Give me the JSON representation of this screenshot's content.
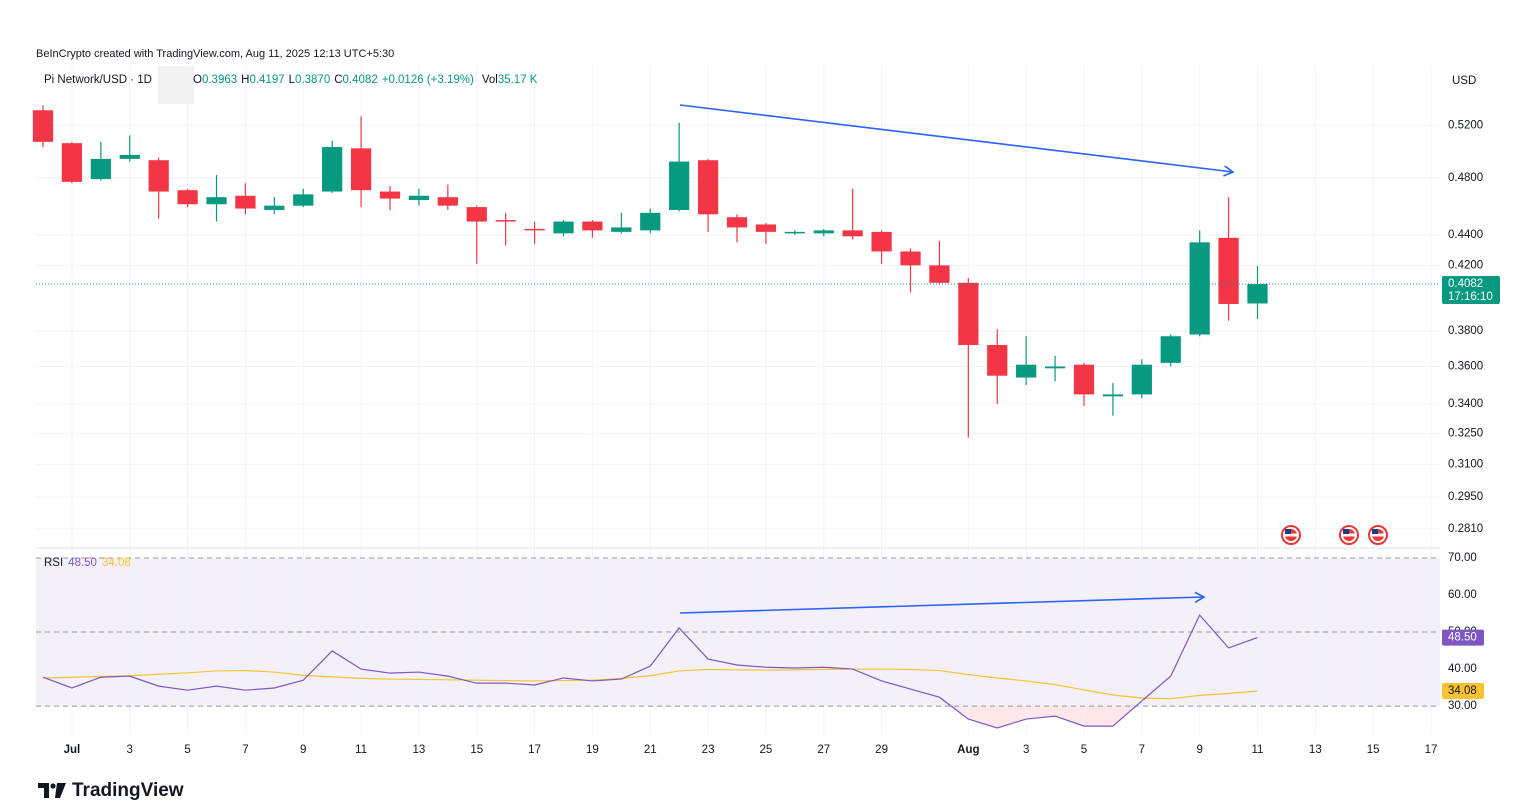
{
  "chart_data": {
    "type": "candlestick",
    "credit": "BeInCrypto created with TradingView.com, Aug 11, 2025 12:13 UTC+5:30",
    "title": "Pi Network/USD · 1D",
    "ohlc_legend": [
      {
        "label": "O",
        "value": "0.3963"
      },
      {
        "label": "H",
        "value": "0.4197"
      },
      {
        "label": "L",
        "value": "0.3870"
      },
      {
        "label": "C",
        "value": "0.4082"
      }
    ],
    "change": "+0.0126 (+3.19%)",
    "volume": {
      "label": "Vol",
      "value": "35.17 K"
    },
    "currency": "USD",
    "countdown": "17:16:10",
    "up_color": "#089981",
    "down_color": "#f23645",
    "log_scale": true,
    "grid": true,
    "x": [
      "2025-06-30",
      "2025-07-01",
      "2025-07-02",
      "2025-07-03",
      "2025-07-04",
      "2025-07-05",
      "2025-07-06",
      "2025-07-07",
      "2025-07-08",
      "2025-07-09",
      "2025-07-10",
      "2025-07-11",
      "2025-07-12",
      "2025-07-13",
      "2025-07-14",
      "2025-07-15",
      "2025-07-16",
      "2025-07-17",
      "2025-07-18",
      "2025-07-19",
      "2025-07-20",
      "2025-07-21",
      "2025-07-22",
      "2025-07-23",
      "2025-07-24",
      "2025-07-25",
      "2025-07-26",
      "2025-07-27",
      "2025-07-28",
      "2025-07-29",
      "2025-07-30",
      "2025-07-31",
      "2025-08-01",
      "2025-08-02",
      "2025-08-03",
      "2025-08-04",
      "2025-08-05",
      "2025-08-06",
      "2025-08-07",
      "2025-08-08",
      "2025-08-09",
      "2025-08-10",
      "2025-08-11"
    ],
    "open": [
      0.532,
      0.506,
      0.479,
      0.494,
      0.493,
      0.471,
      0.461,
      0.467,
      0.457,
      0.46,
      0.47,
      0.502,
      0.47,
      0.464,
      0.466,
      0.459,
      0.45,
      0.444,
      0.441,
      0.449,
      0.442,
      0.443,
      0.457,
      0.493,
      0.452,
      0.447,
      0.441,
      0.441,
      0.443,
      0.442,
      0.429,
      0.42,
      0.409,
      0.372,
      0.354,
      0.359,
      0.361,
      0.344,
      0.345,
      0.362,
      0.378,
      0.438,
      0.3963
    ],
    "high": [
      0.536,
      0.507,
      0.507,
      0.512,
      0.495,
      0.472,
      0.482,
      0.476,
      0.466,
      0.472,
      0.508,
      0.527,
      0.474,
      0.472,
      0.475,
      0.46,
      0.455,
      0.449,
      0.45,
      0.45,
      0.455,
      0.458,
      0.522,
      0.494,
      0.454,
      0.448,
      0.443,
      0.444,
      0.472,
      0.443,
      0.431,
      0.436,
      0.412,
      0.381,
      0.377,
      0.366,
      0.362,
      0.351,
      0.364,
      0.378,
      0.443,
      0.466,
      0.4197
    ],
    "low": [
      0.503,
      0.476,
      0.478,
      0.492,
      0.451,
      0.459,
      0.449,
      0.454,
      0.454,
      0.459,
      0.469,
      0.459,
      0.457,
      0.46,
      0.457,
      0.421,
      0.433,
      0.434,
      0.439,
      0.438,
      0.441,
      0.441,
      0.456,
      0.442,
      0.435,
      0.434,
      0.44,
      0.439,
      0.437,
      0.421,
      0.403,
      0.408,
      0.323,
      0.34,
      0.35,
      0.352,
      0.339,
      0.334,
      0.343,
      0.36,
      0.377,
      0.386,
      0.387
    ],
    "close": [
      0.507,
      0.477,
      0.494,
      0.497,
      0.47,
      0.461,
      0.466,
      0.458,
      0.46,
      0.468,
      0.503,
      0.471,
      0.465,
      0.467,
      0.46,
      0.449,
      0.449,
      0.443,
      0.449,
      0.443,
      0.445,
      0.455,
      0.492,
      0.454,
      0.445,
      0.442,
      0.442,
      0.443,
      0.439,
      0.429,
      0.42,
      0.409,
      0.372,
      0.355,
      0.361,
      0.36,
      0.345,
      0.345,
      0.361,
      0.377,
      0.435,
      0.396,
      0.4082
    ],
    "ylim": [
      0.273,
      0.57
    ],
    "yticks": [
      {
        "value": 0.281,
        "label": "0.2810"
      },
      {
        "value": 0.295,
        "label": "0.2950"
      },
      {
        "value": 0.31,
        "label": "0.3100"
      },
      {
        "value": 0.325,
        "label": "0.3250"
      },
      {
        "value": 0.34,
        "label": "0.3400"
      },
      {
        "value": 0.36,
        "label": "0.3600"
      },
      {
        "value": 0.38,
        "label": "0.3800"
      },
      {
        "value": 0.42,
        "label": "0.4200"
      },
      {
        "value": 0.44,
        "label": "0.4400"
      },
      {
        "value": 0.48,
        "label": "0.4800"
      },
      {
        "value": 0.52,
        "label": "0.5200"
      }
    ],
    "xlim": [
      "2025-06-30",
      "2025-08-17"
    ],
    "xticks": [
      {
        "value": "2025-07-01",
        "label": "Jul"
      },
      {
        "value": "2025-07-03",
        "label": "3"
      },
      {
        "value": "2025-07-05",
        "label": "5"
      },
      {
        "value": "2025-07-07",
        "label": "7"
      },
      {
        "value": "2025-07-09",
        "label": "9"
      },
      {
        "value": "2025-07-11",
        "label": "11"
      },
      {
        "value": "2025-07-13",
        "label": "13"
      },
      {
        "value": "2025-07-15",
        "label": "15"
      },
      {
        "value": "2025-07-17",
        "label": "17"
      },
      {
        "value": "2025-07-19",
        "label": "19"
      },
      {
        "value": "2025-07-21",
        "label": "21"
      },
      {
        "value": "2025-07-23",
        "label": "23"
      },
      {
        "value": "2025-07-25",
        "label": "25"
      },
      {
        "value": "2025-07-27",
        "label": "27"
      },
      {
        "value": "2025-07-29",
        "label": "29"
      },
      {
        "value": "2025-08-01",
        "label": "Aug"
      },
      {
        "value": "2025-08-03",
        "label": "3"
      },
      {
        "value": "2025-08-05",
        "label": "5"
      },
      {
        "value": "2025-08-07",
        "label": "7"
      },
      {
        "value": "2025-08-09",
        "label": "9"
      },
      {
        "value": "2025-08-11",
        "label": "11"
      },
      {
        "value": "2025-08-13",
        "label": "13"
      },
      {
        "value": "2025-08-15",
        "label": "15"
      },
      {
        "value": "2025-08-17",
        "label": "17"
      }
    ],
    "rsi": {
      "title": "RSI",
      "color": "#7e57c2",
      "values": [
        37.8,
        34.9,
        37.8,
        38.1,
        35.4,
        34.3,
        35.4,
        34.3,
        34.9,
        37.0,
        44.9,
        40.0,
        38.9,
        39.2,
        38.1,
        36.2,
        36.2,
        35.7,
        37.6,
        36.8,
        37.3,
        40.8,
        51.1,
        42.7,
        41.1,
        40.5,
        40.3,
        40.5,
        40.0,
        36.8,
        34.6,
        32.4,
        26.5,
        24.1,
        26.5,
        27.3,
        24.6,
        24.6,
        31.4,
        38.1,
        54.6,
        45.7,
        48.5
      ],
      "value_label": "48.50",
      "ma": {
        "color": "#f9c22e",
        "values": [
          37.6,
          37.8,
          38.0,
          38.2,
          38.6,
          39.0,
          39.5,
          39.6,
          39.2,
          38.3,
          37.9,
          37.5,
          37.3,
          37.2,
          37.1,
          37.0,
          36.9,
          36.8,
          36.9,
          37.0,
          37.5,
          38.2,
          39.5,
          39.9,
          39.8,
          39.7,
          39.8,
          39.9,
          40.0,
          40.0,
          39.9,
          39.6,
          38.5,
          37.6,
          36.8,
          35.8,
          34.4,
          33.0,
          32.2,
          32.0,
          32.9,
          33.4,
          34.08
        ],
        "value_label": "34.08"
      },
      "ylim": [
        22.2,
        72.7
      ],
      "yticks": [
        {
          "value": 30,
          "label": "30.00"
        },
        {
          "value": 40,
          "label": "40.00"
        },
        {
          "value": 50,
          "label": "50.00"
        },
        {
          "value": 60,
          "label": "60.00"
        },
        {
          "value": 70,
          "label": "70.00"
        }
      ],
      "bands": [
        30,
        50,
        70
      ]
    },
    "brand": "TradingView"
  }
}
